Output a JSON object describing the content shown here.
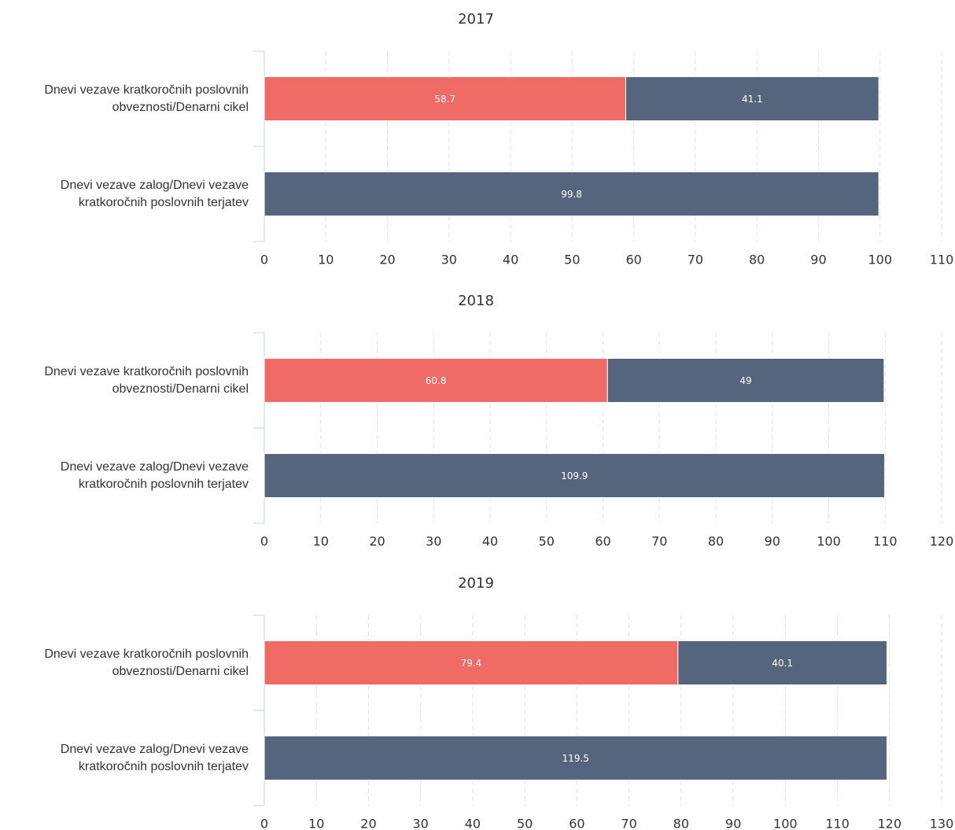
{
  "chart_data": [
    {
      "type": "bar",
      "orientation": "horizontal",
      "stacked": true,
      "title": "2017",
      "categories": [
        "Dnevi vezave kratkoročnih poslovnih obveznosti/Denarni cikel",
        "Dnevi vezave zalog/Dnevi vezave kratkoročnih poslovnih terjatev"
      ],
      "series": [
        {
          "color": "#ee6b66",
          "values": [
            58.7,
            0
          ]
        },
        {
          "color": "#55657e",
          "values": [
            41.1,
            99.8
          ]
        }
      ],
      "xlim": [
        0,
        110
      ],
      "xticks": [
        0,
        10,
        20,
        30,
        40,
        50,
        60,
        70,
        80,
        90,
        100,
        110
      ],
      "grid": true
    },
    {
      "type": "bar",
      "orientation": "horizontal",
      "stacked": true,
      "title": "2018",
      "categories": [
        "Dnevi vezave kratkoročnih poslovnih obveznosti/Denarni cikel",
        "Dnevi vezave zalog/Dnevi vezave kratkoročnih poslovnih terjatev"
      ],
      "series": [
        {
          "color": "#ee6b66",
          "values": [
            60.8,
            0
          ]
        },
        {
          "color": "#55657e",
          "values": [
            49,
            109.9
          ]
        }
      ],
      "xlim": [
        0,
        120
      ],
      "xticks": [
        0,
        10,
        20,
        30,
        40,
        50,
        60,
        70,
        80,
        90,
        100,
        110,
        120
      ],
      "grid": true
    },
    {
      "type": "bar",
      "orientation": "horizontal",
      "stacked": true,
      "title": "2019",
      "categories": [
        "Dnevi vezave kratkoročnih poslovnih obveznosti/Denarni cikel",
        "Dnevi vezave zalog/Dnevi vezave kratkoročnih poslovnih terjatev"
      ],
      "series": [
        {
          "color": "#ee6b66",
          "values": [
            79.4,
            0
          ]
        },
        {
          "color": "#55657e",
          "values": [
            40.1,
            119.5
          ]
        }
      ],
      "xlim": [
        0,
        130
      ],
      "xticks": [
        0,
        10,
        20,
        30,
        40,
        50,
        60,
        70,
        80,
        90,
        100,
        110,
        120,
        130
      ],
      "grid": true
    }
  ]
}
